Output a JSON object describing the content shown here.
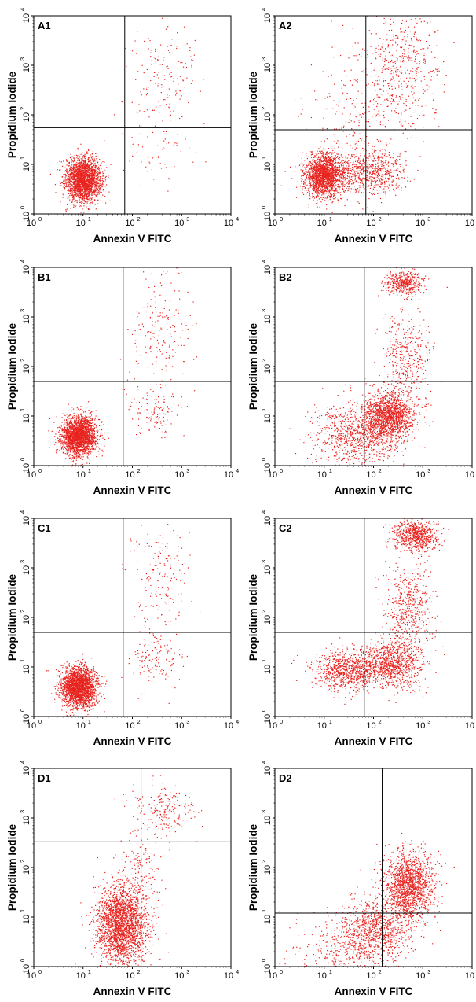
{
  "figure": {
    "point_color": "#e8231f",
    "axis_color": "#000000",
    "x_tick_labels": [
      "10",
      "10",
      "10",
      "10",
      "10"
    ],
    "x_tick_exponents": [
      "0",
      "1",
      "2",
      "3",
      "4"
    ],
    "y_tick_labels": [
      "10",
      "10",
      "10",
      "10",
      "10"
    ],
    "y_tick_exponents": [
      "0",
      "1",
      "2",
      "3",
      "4"
    ]
  },
  "chart_data": [
    {
      "type": "scatter",
      "panel_label": "A1",
      "xlabel": "Annexin V FITC",
      "ylabel": "Propidium Iodide",
      "x_scale": "log",
      "y_scale": "log",
      "xlim": [
        1,
        10000
      ],
      "ylim": [
        1,
        10000
      ],
      "gate": {
        "x": 70,
        "y": 55
      },
      "clusters": [
        {
          "x": 10,
          "y": 5,
          "sx": 0.18,
          "sy": 0.22,
          "n": 2200
        },
        {
          "x": 400,
          "y": 600,
          "sx": 0.35,
          "sy": 0.55,
          "n": 160
        },
        {
          "x": 300,
          "y": 20,
          "sx": 0.4,
          "sy": 0.35,
          "n": 60
        }
      ]
    },
    {
      "type": "scatter",
      "panel_label": "A2",
      "xlabel": "Annexin V FITC",
      "ylabel": "Propidium Iodide",
      "x_scale": "log",
      "y_scale": "log",
      "xlim": [
        1,
        10000
      ],
      "ylim": [
        1,
        10000
      ],
      "gate": {
        "x": 70,
        "y": 50
      },
      "clusters": [
        {
          "x": 10,
          "y": 6,
          "sx": 0.2,
          "sy": 0.22,
          "n": 1900
        },
        {
          "x": 80,
          "y": 7,
          "sx": 0.35,
          "sy": 0.25,
          "n": 700
        },
        {
          "x": 400,
          "y": 800,
          "sx": 0.35,
          "sy": 0.6,
          "n": 450
        },
        {
          "x": 60,
          "y": 150,
          "sx": 0.6,
          "sy": 0.7,
          "n": 250
        }
      ]
    },
    {
      "type": "scatter",
      "panel_label": "B1",
      "xlabel": "Annexin V FITC",
      "ylabel": "Propidium Iodide",
      "x_scale": "log",
      "y_scale": "log",
      "xlim": [
        1,
        10000
      ],
      "ylim": [
        1,
        10000
      ],
      "gate": {
        "x": 65,
        "y": 50
      },
      "clusters": [
        {
          "x": 8,
          "y": 4,
          "sx": 0.18,
          "sy": 0.2,
          "n": 2200
        },
        {
          "x": 350,
          "y": 600,
          "sx": 0.3,
          "sy": 0.55,
          "n": 180
        },
        {
          "x": 300,
          "y": 12,
          "sx": 0.25,
          "sy": 0.25,
          "n": 130
        }
      ]
    },
    {
      "type": "scatter",
      "panel_label": "B2",
      "xlabel": "Annexin V FITC",
      "ylabel": "Propidium Iodide",
      "x_scale": "log",
      "y_scale": "log",
      "xlim": [
        1,
        10000
      ],
      "ylim": [
        1,
        10000
      ],
      "gate": {
        "x": 65,
        "y": 50
      },
      "clusters": [
        {
          "x": 200,
          "y": 10,
          "sx": 0.25,
          "sy": 0.25,
          "n": 1400
        },
        {
          "x": 40,
          "y": 4,
          "sx": 0.45,
          "sy": 0.35,
          "n": 900
        },
        {
          "x": 400,
          "y": 5000,
          "sx": 0.2,
          "sy": 0.12,
          "n": 450
        },
        {
          "x": 450,
          "y": 150,
          "sx": 0.25,
          "sy": 0.5,
          "n": 400
        }
      ]
    },
    {
      "type": "scatter",
      "panel_label": "C1",
      "xlabel": "Annexin V FITC",
      "ylabel": "Propidium Iodide",
      "x_scale": "log",
      "y_scale": "log",
      "xlim": [
        1,
        10000
      ],
      "ylim": [
        1,
        10000
      ],
      "gate": {
        "x": 65,
        "y": 50
      },
      "clusters": [
        {
          "x": 8,
          "y": 4,
          "sx": 0.18,
          "sy": 0.2,
          "n": 2300
        },
        {
          "x": 350,
          "y": 600,
          "sx": 0.3,
          "sy": 0.6,
          "n": 180
        },
        {
          "x": 300,
          "y": 15,
          "sx": 0.25,
          "sy": 0.3,
          "n": 130
        }
      ]
    },
    {
      "type": "scatter",
      "panel_label": "C2",
      "xlabel": "Annexin V FITC",
      "ylabel": "Propidium Iodide",
      "x_scale": "log",
      "y_scale": "log",
      "xlim": [
        1,
        10000
      ],
      "ylim": [
        1,
        10000
      ],
      "gate": {
        "x": 65,
        "y": 50
      },
      "clusters": [
        {
          "x": 30,
          "y": 9,
          "sx": 0.35,
          "sy": 0.2,
          "n": 900
        },
        {
          "x": 250,
          "y": 12,
          "sx": 0.3,
          "sy": 0.25,
          "n": 900
        },
        {
          "x": 700,
          "y": 4500,
          "sx": 0.22,
          "sy": 0.15,
          "n": 700
        },
        {
          "x": 500,
          "y": 150,
          "sx": 0.25,
          "sy": 0.5,
          "n": 500
        }
      ]
    },
    {
      "type": "scatter",
      "panel_label": "D1",
      "xlabel": "Annexin V FITC",
      "ylabel": "Propidium Iodide",
      "x_scale": "log",
      "y_scale": "log",
      "xlim": [
        1,
        10000
      ],
      "ylim": [
        1,
        10000
      ],
      "gate": {
        "x": 150,
        "y": 330
      },
      "clusters": [
        {
          "x": 60,
          "y": 7,
          "sx": 0.25,
          "sy": 0.4,
          "n": 2400
        },
        {
          "x": 400,
          "y": 1500,
          "sx": 0.3,
          "sy": 0.25,
          "n": 200
        },
        {
          "x": 150,
          "y": 80,
          "sx": 0.2,
          "sy": 0.4,
          "n": 150
        }
      ]
    },
    {
      "type": "scatter",
      "panel_label": "D2",
      "xlabel": "Annexin V FITC",
      "ylabel": "Propidium Iodide",
      "x_scale": "log",
      "y_scale": "log",
      "xlim": [
        1,
        10000
      ],
      "ylim": [
        1,
        10000
      ],
      "gate": {
        "x": 150,
        "y": 12
      },
      "clusters": [
        {
          "x": 500,
          "y": 40,
          "sx": 0.25,
          "sy": 0.35,
          "n": 1600
        },
        {
          "x": 100,
          "y": 5,
          "sx": 0.35,
          "sy": 0.35,
          "n": 900
        },
        {
          "x": 20,
          "y": 2,
          "sx": 0.5,
          "sy": 0.35,
          "n": 300
        }
      ]
    }
  ]
}
